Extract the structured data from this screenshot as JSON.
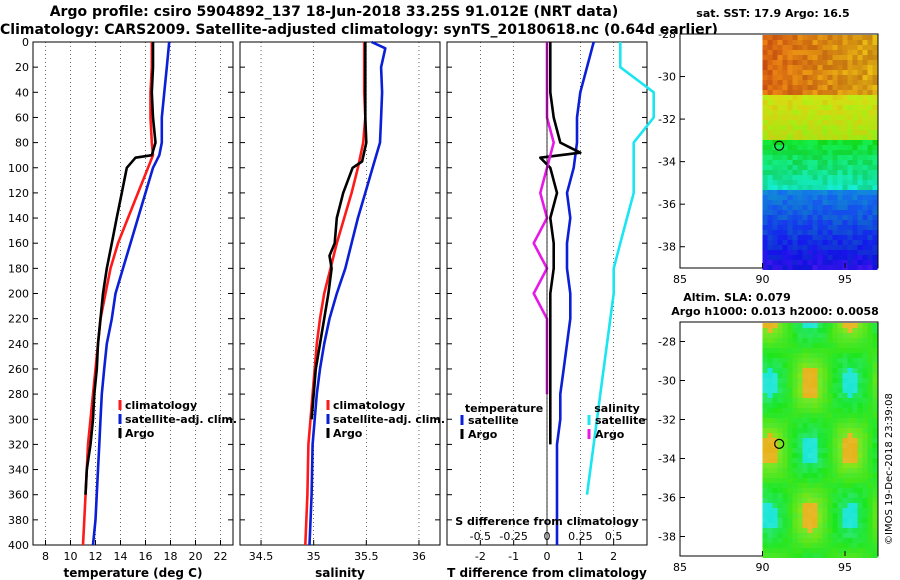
{
  "title": {
    "line1": "Argo profile: csiro 5904892_137 18-Jun-2018 33.25S 91.012E (NRT data)",
    "line2": "Climatology: CARS2009. Satellite-adjusted climatology: synTS_20180618.nc (0.64d earlier)"
  },
  "colors": {
    "climatology": "#ff1a1a",
    "satellite": "#0a1fd6",
    "argo": "#000000",
    "argo_salinity": "#e619e6",
    "satellite_salinity": "#19e6f0"
  },
  "depth_axis": {
    "ticks": [
      "0",
      "20",
      "40",
      "60",
      "80",
      "100",
      "120",
      "140",
      "160",
      "180",
      "200",
      "220",
      "240",
      "260",
      "280",
      "300",
      "320",
      "340",
      "360",
      "380",
      "400"
    ]
  },
  "chart_data": [
    {
      "type": "line",
      "name": "temperature",
      "xlabel": "temperature (deg C)",
      "ylabel": "depth",
      "xlim": [
        7,
        23
      ],
      "ylim": [
        0,
        400
      ],
      "xticks": [
        "8",
        "10",
        "12",
        "14",
        "16",
        "18",
        "20",
        "22"
      ],
      "legend": [
        "climatology",
        "satellite-adj. clim.",
        "Argo"
      ],
      "legend_position": "bottom-right",
      "series": [
        {
          "name": "climatology",
          "color": "#ff1a1a",
          "x": [
            16.5,
            16.5,
            16.4,
            16.4,
            16.5,
            16.6,
            16.2,
            15.4,
            14.6,
            13.8,
            13.2,
            12.8,
            12.4,
            12.2,
            12.0,
            11.8,
            11.6,
            11.4,
            11.3,
            11.1,
            11.0
          ],
          "y": [
            0,
            20,
            40,
            60,
            80,
            90,
            100,
            120,
            140,
            160,
            180,
            200,
            220,
            240,
            260,
            280,
            300,
            320,
            340,
            380,
            400
          ]
        },
        {
          "name": "satellite-adj. clim.",
          "color": "#0a1fd6",
          "x": [
            17.9,
            17.7,
            17.5,
            17.3,
            17.3,
            17.1,
            16.6,
            16.0,
            15.4,
            14.8,
            14.2,
            13.6,
            13.3,
            12.9,
            12.7,
            12.5,
            12.4,
            12.3,
            12.2,
            12.0,
            11.8
          ],
          "y": [
            0,
            20,
            40,
            60,
            80,
            90,
            100,
            120,
            140,
            160,
            180,
            200,
            220,
            240,
            260,
            280,
            300,
            320,
            340,
            380,
            400
          ]
        },
        {
          "name": "Argo",
          "color": "#000000",
          "x": [
            16.6,
            16.6,
            16.5,
            16.6,
            16.8,
            16.5,
            15.2,
            14.5,
            14.1,
            13.7,
            13.3,
            12.9,
            12.6,
            12.4,
            12.2,
            12.1,
            11.9,
            11.8,
            11.6,
            11.3,
            11.2
          ],
          "y": [
            0,
            20,
            40,
            60,
            80,
            90,
            92,
            100,
            120,
            140,
            160,
            180,
            200,
            220,
            240,
            260,
            280,
            300,
            320,
            340,
            360
          ]
        }
      ]
    },
    {
      "type": "line",
      "name": "salinity",
      "xlabel": "salinity",
      "xlim": [
        34.3,
        36.2
      ],
      "ylim": [
        0,
        400
      ],
      "xticks": [
        "34.5",
        "35",
        "35.5",
        "36"
      ],
      "legend": [
        "climatology",
        "satellite-adj. clim.",
        "Argo"
      ],
      "legend_position": "bottom-right",
      "series": [
        {
          "name": "climatology",
          "color": "#ff1a1a",
          "x": [
            35.48,
            35.48,
            35.48,
            35.49,
            35.47,
            35.42,
            35.36,
            35.29,
            35.22,
            35.16,
            35.1,
            35.06,
            35.03,
            35.01,
            34.99,
            34.97,
            34.95,
            34.94,
            34.92
          ],
          "y": [
            0,
            20,
            40,
            60,
            80,
            100,
            120,
            140,
            160,
            180,
            200,
            220,
            240,
            260,
            280,
            300,
            320,
            360,
            400
          ]
        },
        {
          "name": "satellite-adj. clim.",
          "color": "#0a1fd6",
          "x": [
            35.55,
            35.68,
            35.64,
            35.65,
            35.64,
            35.63,
            35.56,
            35.49,
            35.42,
            35.36,
            35.3,
            35.22,
            35.15,
            35.1,
            35.06,
            35.03,
            35.01,
            34.99,
            34.98,
            34.96
          ],
          "y": [
            0,
            5,
            20,
            40,
            60,
            80,
            100,
            120,
            140,
            160,
            180,
            200,
            220,
            240,
            260,
            280,
            300,
            320,
            360,
            400
          ]
        },
        {
          "name": "Argo",
          "color": "#000000",
          "x": [
            35.49,
            35.49,
            35.49,
            35.49,
            35.5,
            35.46,
            35.37,
            35.28,
            35.22,
            35.2,
            35.15,
            35.17,
            35.14,
            35.1,
            35.06,
            35.02,
            35.0,
            34.98
          ],
          "y": [
            0,
            20,
            40,
            60,
            80,
            95,
            100,
            120,
            140,
            160,
            170,
            180,
            200,
            220,
            240,
            260,
            280,
            300
          ]
        }
      ]
    },
    {
      "type": "line",
      "name": "differences",
      "xlabel": "T difference from climatology",
      "xlim": [
        -3,
        3
      ],
      "ylim": [
        0,
        400
      ],
      "xticks": [
        "-2",
        "-1",
        "0",
        "1",
        "2"
      ],
      "secondary_xlabel": "S difference from climatology",
      "secondary_xticks": [
        "-0.5",
        "-0.25",
        "0",
        "0.25",
        "0.5"
      ],
      "legend_titles": [
        "temperature",
        "salinity"
      ],
      "legend": [
        "satellite",
        "Argo",
        "satellite",
        "Argo"
      ],
      "legend_position": "bottom",
      "series": [
        {
          "name": "temperature satellite",
          "color": "#0a1fd6",
          "x": [
            1.4,
            1.2,
            1.0,
            0.9,
            0.9,
            0.8,
            0.6,
            0.7,
            0.6,
            0.6,
            0.7,
            0.7,
            0.6,
            0.5,
            0.4,
            0.4,
            0.3,
            0.3,
            0.3,
            0.3
          ],
          "y": [
            0,
            20,
            40,
            60,
            80,
            100,
            120,
            140,
            160,
            180,
            200,
            220,
            240,
            260,
            280,
            300,
            320,
            340,
            360,
            400
          ]
        },
        {
          "name": "temperature Argo",
          "color": "#000000",
          "x": [
            0.1,
            0.1,
            0.1,
            0.2,
            0.4,
            1.0,
            -0.2,
            0.1,
            0.3,
            0.1,
            0.2,
            0.2,
            0.1,
            0.1,
            0.1,
            0.1,
            0.1,
            0.1,
            0.1
          ],
          "y": [
            0,
            20,
            40,
            60,
            80,
            88,
            92,
            100,
            120,
            140,
            160,
            180,
            200,
            220,
            240,
            260,
            280,
            300,
            320
          ]
        },
        {
          "name": "salinity satellite",
          "color": "#19e6f0",
          "x": [
            0.55,
            0.55,
            0.8,
            0.8,
            0.65,
            0.65,
            0.65,
            0.6,
            0.55,
            0.5,
            0.5,
            0.45,
            0.4,
            0.35,
            0.3
          ],
          "y": [
            0,
            20,
            40,
            60,
            80,
            100,
            120,
            140,
            160,
            180,
            200,
            240,
            280,
            320,
            360
          ]
        },
        {
          "name": "salinity Argo",
          "color": "#e619e6",
          "x": [
            0.0,
            0.0,
            0.0,
            0.0,
            0.05,
            0.0,
            -0.05,
            0.0,
            -0.1,
            0.0,
            -0.1,
            0.0,
            0.0,
            0.0,
            0.0
          ],
          "y": [
            0,
            20,
            40,
            60,
            80,
            100,
            120,
            140,
            160,
            180,
            200,
            220,
            240,
            260,
            280
          ]
        }
      ]
    },
    {
      "type": "heatmap",
      "name": "sst-map",
      "title": "sat. SST: 17.9 Argo: 16.5",
      "xlim": [
        85,
        97
      ],
      "ylim": [
        -39,
        -28
      ],
      "xticks": [
        "85",
        "90",
        "95"
      ],
      "yticks": [
        "-28",
        "-30",
        "-32",
        "-34",
        "-36",
        "-38"
      ],
      "profile_marker": {
        "lon": 91.012,
        "lat": -33.25
      }
    },
    {
      "type": "heatmap",
      "name": "sla-map",
      "title": "Altim. SLA: 0.079",
      "subtitle": "Argo h1000: 0.013 h2000: 0.0058",
      "xlim": [
        85,
        97
      ],
      "ylim": [
        -39,
        -27
      ],
      "xticks": [
        "85",
        "90",
        "95"
      ],
      "yticks": [
        "-28",
        "-30",
        "-32",
        "-34",
        "-36",
        "-38"
      ],
      "profile_marker": {
        "lon": 91.012,
        "lat": -33.25
      }
    }
  ],
  "credit": "©IMOS 19-Dec-2018 23:39:08"
}
